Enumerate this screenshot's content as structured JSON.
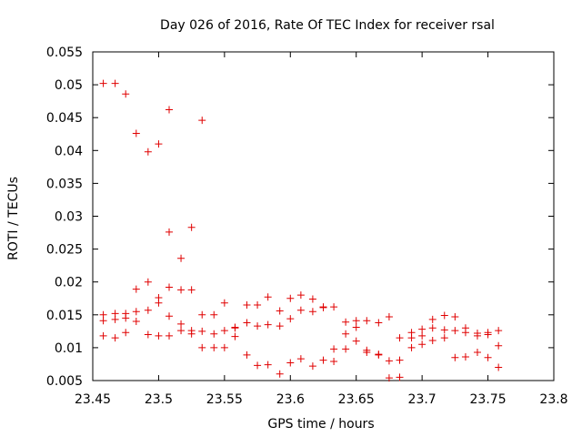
{
  "chart_data": {
    "type": "scatter",
    "title": "Day 026 of 2016, Rate Of TEC Index for receiver rsal",
    "xlabel": "GPS time / hours",
    "ylabel": "ROTI / TECUs",
    "xlim": [
      23.45,
      23.8
    ],
    "ylim": [
      0.005,
      0.055
    ],
    "xticks": [
      "23.45",
      "23.5",
      "23.55",
      "23.6",
      "23.65",
      "23.7",
      "23.75",
      "23.8"
    ],
    "yticks": [
      "0.005",
      "0.01",
      "0.015",
      "0.02",
      "0.025",
      "0.03",
      "0.035",
      "0.04",
      "0.045",
      "0.05",
      "0.055"
    ],
    "grid": false,
    "marker": "plus",
    "color": "#e00000",
    "series": [
      {
        "name": "rsal",
        "points": [
          [
            23.458,
            0.0502
          ],
          [
            23.458,
            0.015
          ],
          [
            23.458,
            0.0141
          ],
          [
            23.458,
            0.0118
          ],
          [
            23.467,
            0.0502
          ],
          [
            23.467,
            0.0152
          ],
          [
            23.467,
            0.0143
          ],
          [
            23.467,
            0.0115
          ],
          [
            23.475,
            0.0486
          ],
          [
            23.475,
            0.0152
          ],
          [
            23.475,
            0.0145
          ],
          [
            23.475,
            0.0123
          ],
          [
            23.483,
            0.0426
          ],
          [
            23.483,
            0.0189
          ],
          [
            23.483,
            0.0155
          ],
          [
            23.483,
            0.014
          ],
          [
            23.492,
            0.0398
          ],
          [
            23.492,
            0.02
          ],
          [
            23.492,
            0.0157
          ],
          [
            23.492,
            0.012
          ],
          [
            23.5,
            0.041
          ],
          [
            23.5,
            0.0176
          ],
          [
            23.5,
            0.0168
          ],
          [
            23.5,
            0.0118
          ],
          [
            23.508,
            0.0462
          ],
          [
            23.508,
            0.0276
          ],
          [
            23.508,
            0.0192
          ],
          [
            23.508,
            0.0148
          ],
          [
            23.508,
            0.0118
          ],
          [
            23.517,
            0.0236
          ],
          [
            23.517,
            0.0188
          ],
          [
            23.517,
            0.0136
          ],
          [
            23.517,
            0.0126
          ],
          [
            23.525,
            0.0283
          ],
          [
            23.525,
            0.0188
          ],
          [
            23.525,
            0.0126
          ],
          [
            23.525,
            0.0121
          ],
          [
            23.533,
            0.0446
          ],
          [
            23.533,
            0.015
          ],
          [
            23.533,
            0.0125
          ],
          [
            23.533,
            0.01
          ],
          [
            23.542,
            0.015
          ],
          [
            23.542,
            0.0121
          ],
          [
            23.542,
            0.01
          ],
          [
            23.55,
            0.0168
          ],
          [
            23.55,
            0.0126
          ],
          [
            23.55,
            0.01
          ],
          [
            23.558,
            0.0131
          ],
          [
            23.558,
            0.013
          ],
          [
            23.558,
            0.0117
          ],
          [
            23.567,
            0.0165
          ],
          [
            23.567,
            0.0138
          ],
          [
            23.567,
            0.0089
          ],
          [
            23.575,
            0.0165
          ],
          [
            23.575,
            0.0133
          ],
          [
            23.575,
            0.0073
          ],
          [
            23.583,
            0.0177
          ],
          [
            23.583,
            0.0135
          ],
          [
            23.583,
            0.0074
          ],
          [
            23.592,
            0.0156
          ],
          [
            23.592,
            0.0133
          ],
          [
            23.592,
            0.006
          ],
          [
            23.6,
            0.0175
          ],
          [
            23.6,
            0.0144
          ],
          [
            23.6,
            0.0077
          ],
          [
            23.608,
            0.018
          ],
          [
            23.608,
            0.0157
          ],
          [
            23.608,
            0.0083
          ],
          [
            23.617,
            0.0174
          ],
          [
            23.617,
            0.0155
          ],
          [
            23.617,
            0.0072
          ],
          [
            23.625,
            0.0162
          ],
          [
            23.625,
            0.0161
          ],
          [
            23.625,
            0.0081
          ],
          [
            23.633,
            0.0162
          ],
          [
            23.633,
            0.0098
          ],
          [
            23.633,
            0.0079
          ],
          [
            23.642,
            0.0139
          ],
          [
            23.642,
            0.0121
          ],
          [
            23.642,
            0.0098
          ],
          [
            23.65,
            0.0141
          ],
          [
            23.65,
            0.0131
          ],
          [
            23.65,
            0.011
          ],
          [
            23.658,
            0.0141
          ],
          [
            23.658,
            0.0096
          ],
          [
            23.658,
            0.0093
          ],
          [
            23.667,
            0.0138
          ],
          [
            23.667,
            0.009
          ],
          [
            23.667,
            0.0089
          ],
          [
            23.675,
            0.0147
          ],
          [
            23.675,
            0.008
          ],
          [
            23.675,
            0.0054
          ],
          [
            23.683,
            0.0115
          ],
          [
            23.683,
            0.0081
          ],
          [
            23.683,
            0.0055
          ],
          [
            23.692,
            0.0123
          ],
          [
            23.692,
            0.0115
          ],
          [
            23.692,
            0.01
          ],
          [
            23.7,
            0.0128
          ],
          [
            23.7,
            0.0118
          ],
          [
            23.7,
            0.0105
          ],
          [
            23.708,
            0.0143
          ],
          [
            23.708,
            0.013
          ],
          [
            23.708,
            0.0111
          ],
          [
            23.717,
            0.0149
          ],
          [
            23.717,
            0.0127
          ],
          [
            23.717,
            0.0115
          ],
          [
            23.725,
            0.0147
          ],
          [
            23.725,
            0.0126
          ],
          [
            23.725,
            0.0085
          ],
          [
            23.733,
            0.013
          ],
          [
            23.733,
            0.0123
          ],
          [
            23.733,
            0.0086
          ],
          [
            23.742,
            0.0122
          ],
          [
            23.742,
            0.0118
          ],
          [
            23.742,
            0.0093
          ],
          [
            23.75,
            0.0123
          ],
          [
            23.75,
            0.012
          ],
          [
            23.75,
            0.0085
          ],
          [
            23.758,
            0.0126
          ],
          [
            23.758,
            0.0103
          ],
          [
            23.758,
            0.007
          ]
        ]
      }
    ]
  }
}
